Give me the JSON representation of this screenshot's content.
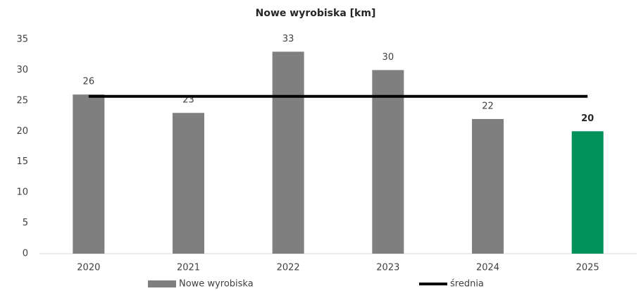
{
  "chart_data": {
    "type": "bar",
    "title": "Nowe wyrobiska [km]",
    "categories": [
      "2020",
      "2021",
      "2022",
      "2023",
      "2024",
      "2025"
    ],
    "series": [
      {
        "name": "Nowe wyrobiska",
        "type": "bar",
        "color": "#7f7f7f",
        "colors": [
          "#7f7f7f",
          "#7f7f7f",
          "#7f7f7f",
          "#7f7f7f",
          "#7f7f7f",
          "#00905a"
        ],
        "highlight_index": 5,
        "values": [
          26,
          23,
          33,
          30,
          22,
          20
        ]
      },
      {
        "name": "średnia",
        "type": "line",
        "color": "#000000",
        "values": [
          25.7,
          25.7,
          25.7,
          25.7,
          25.7,
          25.7
        ]
      }
    ],
    "ylim": [
      0,
      35
    ],
    "yticks": [
      0,
      5,
      10,
      15,
      20,
      25,
      30,
      35
    ],
    "grid": false,
    "legend": "bottom"
  }
}
